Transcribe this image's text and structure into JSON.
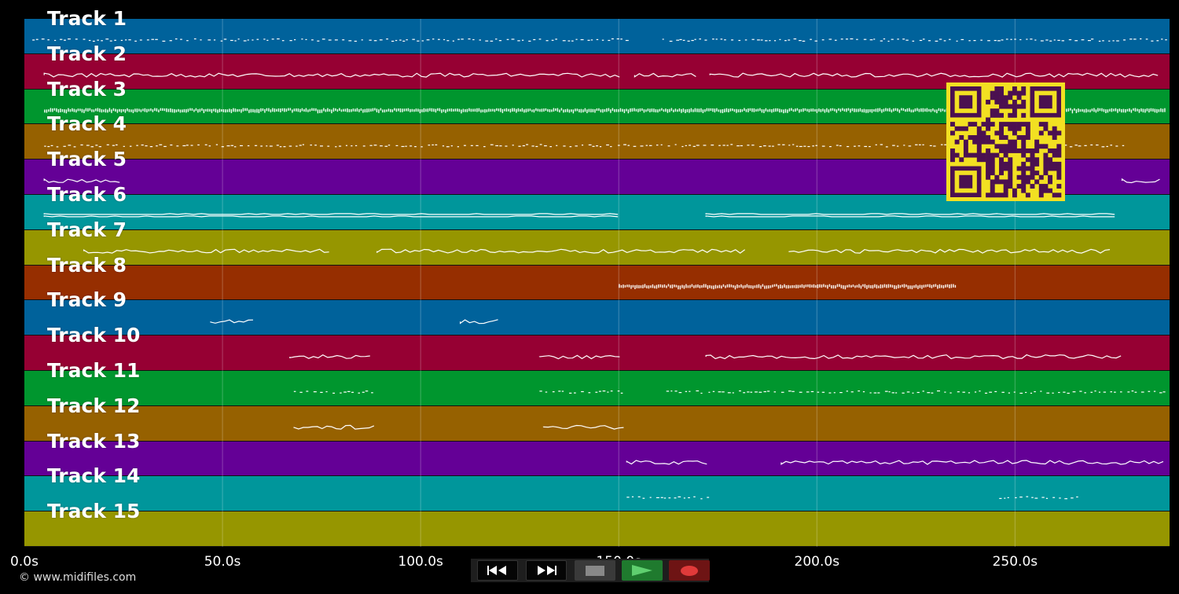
{
  "app": {
    "copyright": "© www.midifiles.com"
  },
  "timeline": {
    "max_seconds": 289,
    "ticks": [
      "0.0s",
      "50.0s",
      "100.0s",
      "150.0s",
      "200.0s",
      "250.0s"
    ],
    "tick_values": [
      0,
      50,
      100,
      150,
      200,
      250
    ]
  },
  "tracks": [
    {
      "label": "Track 1",
      "color": "#00629b",
      "segments": [
        [
          2,
          153
        ],
        [
          161,
          288
        ]
      ],
      "style": "dots"
    },
    {
      "label": "Track 2",
      "color": "#960033",
      "segments": [
        [
          5,
          151
        ],
        [
          154,
          170
        ],
        [
          173,
          287
        ]
      ],
      "style": "line"
    },
    {
      "label": "Track 3",
      "color": "#00962e",
      "segments": [
        [
          5,
          288
        ]
      ],
      "style": "dense"
    },
    {
      "label": "Track 4",
      "color": "#966100",
      "segments": [
        [
          5,
          278
        ]
      ],
      "style": "dots"
    },
    {
      "label": "Track 5",
      "color": "#640096",
      "segments": [
        [
          5,
          25
        ],
        [
          277,
          287
        ]
      ],
      "style": "line"
    },
    {
      "label": "Track 6",
      "color": "#00969b",
      "segments": [
        [
          5,
          151
        ],
        [
          172,
          276
        ]
      ],
      "style": "double"
    },
    {
      "label": "Track 7",
      "color": "#969600",
      "segments": [
        [
          15,
          78
        ],
        [
          89,
          182
        ],
        [
          193,
          275
        ]
      ],
      "style": "line"
    },
    {
      "label": "Track 8",
      "color": "#962e00",
      "segments": [
        [
          150,
          235
        ]
      ],
      "style": "dense"
    },
    {
      "label": "Track 9",
      "color": "#00629b",
      "segments": [
        [
          47,
          58
        ],
        [
          110,
          120
        ]
      ],
      "style": "line"
    },
    {
      "label": "Track 10",
      "color": "#960033",
      "segments": [
        [
          67,
          88
        ],
        [
          130,
          151
        ],
        [
          172,
          277
        ]
      ],
      "style": "line"
    },
    {
      "label": "Track 11",
      "color": "#00962e",
      "segments": [
        [
          68,
          88
        ],
        [
          130,
          151
        ],
        [
          162,
          288
        ]
      ],
      "style": "dots"
    },
    {
      "label": "Track 12",
      "color": "#966100",
      "segments": [
        [
          68,
          89
        ],
        [
          131,
          152
        ]
      ],
      "style": "line"
    },
    {
      "label": "Track 13",
      "color": "#640096",
      "segments": [
        [
          152,
          173
        ],
        [
          191,
          288
        ]
      ],
      "style": "line"
    },
    {
      "label": "Track 14",
      "color": "#00969b",
      "segments": [
        [
          152,
          173
        ],
        [
          246,
          266
        ]
      ],
      "style": "dots"
    },
    {
      "label": "Track 15",
      "color": "#969600",
      "segments": [],
      "style": "line"
    }
  ],
  "transport": {
    "buttons": [
      {
        "name": "rewind-button",
        "icon": "rewind-icon"
      },
      {
        "name": "fast-forward-button",
        "icon": "fast-forward-icon"
      },
      {
        "name": "stop-button",
        "icon": "stop-icon"
      },
      {
        "name": "play-button",
        "icon": "play-icon",
        "color": "#1f7a2e"
      },
      {
        "name": "record-button",
        "icon": "record-icon",
        "color": "#6e1414"
      }
    ]
  }
}
